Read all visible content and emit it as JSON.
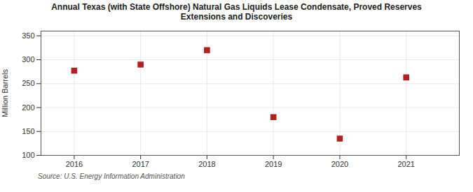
{
  "chart_data": {
    "type": "scatter",
    "title": "Annual Texas (with State Offshore) Natural Gas Liquids Lease Condensate, Proved Reserves\nExtensions and Discoveries",
    "ylabel": "Million Barrels",
    "annotations": [
      "Source: U.S. Energy Information Administration"
    ],
    "x": [
      2016,
      2017,
      2018,
      2019,
      2020,
      2021
    ],
    "values": [
      277,
      290,
      320,
      180,
      135,
      263
    ],
    "xlim": [
      2015.5,
      2021.8
    ],
    "xticks": [
      2016,
      2017,
      2018,
      2019,
      2020,
      2021
    ],
    "ylim": [
      100,
      360
    ],
    "yticks": [
      100,
      150,
      200,
      250,
      300,
      350
    ],
    "color": "#b22020",
    "marker": "square",
    "grid": true
  }
}
